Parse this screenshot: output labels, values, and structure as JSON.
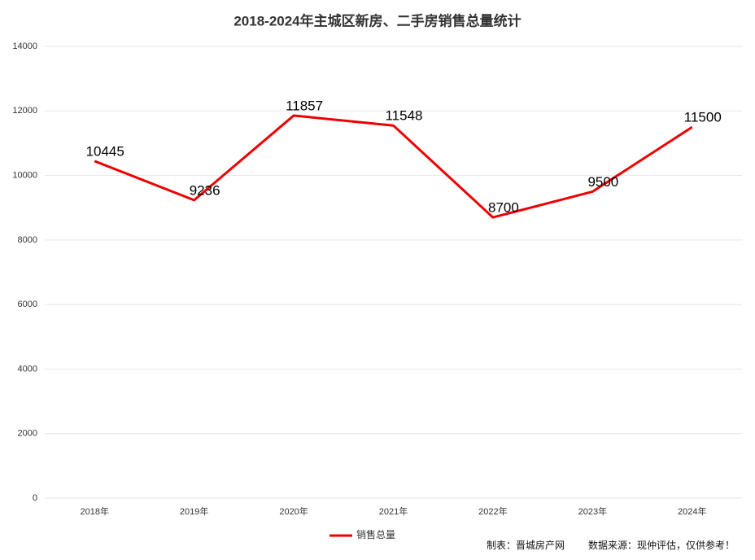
{
  "chart_data": {
    "type": "line",
    "title": "2018-2024年主城区新房、二手房销售总量统计",
    "categories": [
      "2018年",
      "2019年",
      "2020年",
      "2021年",
      "2022年",
      "2023年",
      "2024年"
    ],
    "series": [
      {
        "name": "销售总量",
        "color": "#ee0000",
        "values": [
          10445,
          9236,
          11857,
          11548,
          8700,
          9500,
          11500
        ]
      }
    ],
    "ylim": [
      0,
      14000
    ],
    "yticks": [
      0,
      2000,
      4000,
      6000,
      8000,
      10000,
      12000,
      14000
    ],
    "grid": true,
    "legend": "bottom",
    "footer": {
      "made_by": "制表：晋城房产网",
      "source": "数据来源：现仲评估，仅供参考！"
    }
  }
}
